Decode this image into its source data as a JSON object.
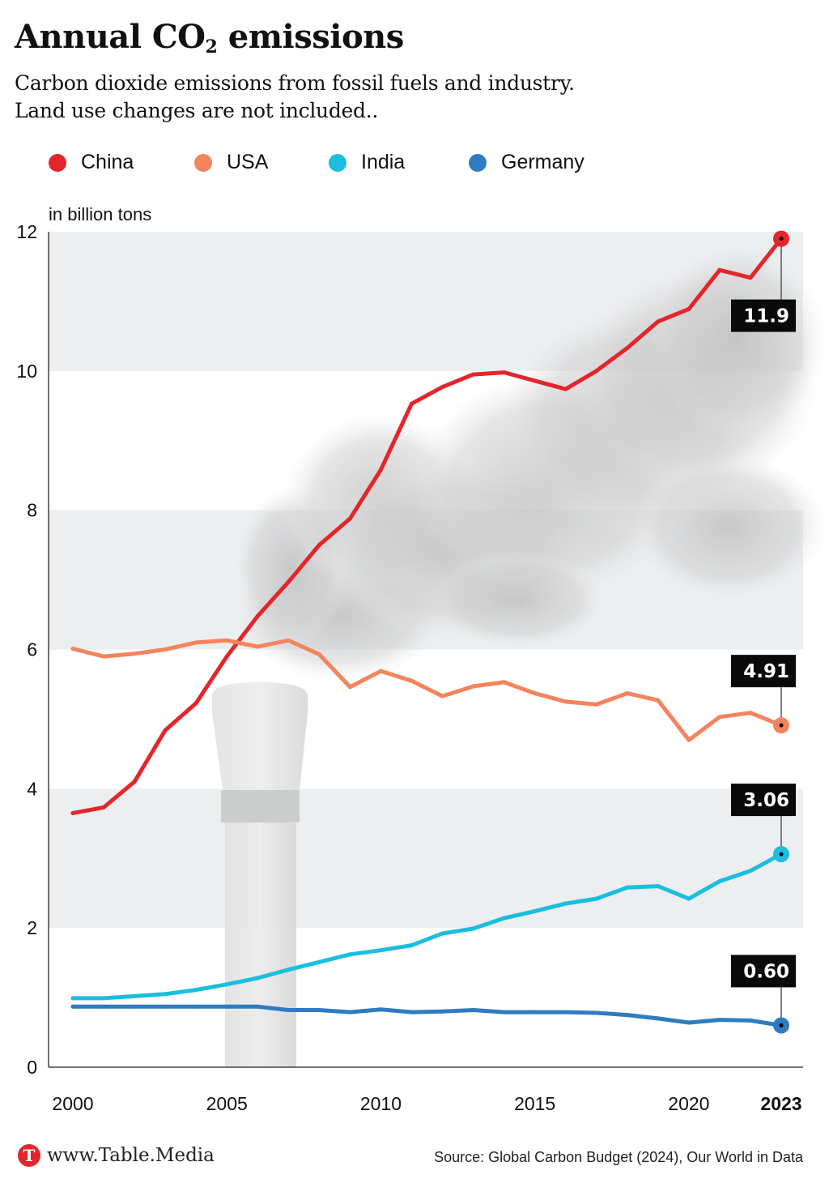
{
  "header": {
    "title_main": "Annual CO",
    "title_sub": "2",
    "title_end": " emissions",
    "subtitle_line1": "Carbon dioxide emissions from fossil fuels and industry.",
    "subtitle_line2": "Land use changes are not included.."
  },
  "footer": {
    "logo_letter": "T",
    "site": "www.Table.Media",
    "source": "Source: Global Carbon Budget (2024), Our World in Data"
  },
  "chart_data": {
    "type": "line",
    "title": "Annual CO2 emissions",
    "subtitle": "Carbon dioxide emissions from fossil fuels and industry. Land use changes are not included..",
    "ylabel": "in billion tons",
    "xlabel": "",
    "ylim": [
      0,
      12
    ],
    "xlim": [
      2000,
      2023
    ],
    "yticks": [
      0,
      2,
      4,
      6,
      8,
      10,
      12
    ],
    "xticks": [
      2000,
      2005,
      2010,
      2015,
      2020,
      2023
    ],
    "xtick_labels": [
      "2000",
      "2005",
      "2010",
      "2015",
      "2020",
      "2023"
    ],
    "shaded_bands": [
      [
        2,
        4
      ],
      [
        6,
        8
      ],
      [
        10,
        12
      ]
    ],
    "legend_position": "top",
    "x": [
      2000,
      2001,
      2002,
      2003,
      2004,
      2005,
      2006,
      2007,
      2008,
      2009,
      2010,
      2011,
      2012,
      2013,
      2014,
      2015,
      2016,
      2017,
      2018,
      2019,
      2020,
      2021,
      2022,
      2023
    ],
    "series": [
      {
        "name": "China",
        "color": "#e3262b",
        "values": [
          3.65,
          3.73,
          4.1,
          4.84,
          5.23,
          5.9,
          6.48,
          6.97,
          7.5,
          7.88,
          8.58,
          9.53,
          9.77,
          9.95,
          9.98,
          9.86,
          9.74,
          10.0,
          10.33,
          10.71,
          10.89,
          11.45,
          11.34,
          11.9
        ],
        "end_label": "11.9"
      },
      {
        "name": "USA",
        "color": "#f3845e",
        "values": [
          6.01,
          5.9,
          5.94,
          6.0,
          6.1,
          6.13,
          6.04,
          6.13,
          5.93,
          5.46,
          5.69,
          5.55,
          5.33,
          5.47,
          5.53,
          5.37,
          5.25,
          5.21,
          5.37,
          5.27,
          4.7,
          5.03,
          5.09,
          4.91
        ],
        "end_label": "4.91"
      },
      {
        "name": "India",
        "color": "#1bbede",
        "values": [
          0.99,
          0.99,
          1.02,
          1.05,
          1.11,
          1.19,
          1.28,
          1.4,
          1.51,
          1.62,
          1.68,
          1.75,
          1.92,
          1.99,
          2.14,
          2.24,
          2.35,
          2.42,
          2.58,
          2.6,
          2.42,
          2.67,
          2.82,
          3.06
        ],
        "end_label": "3.06"
      },
      {
        "name": "Germany",
        "color": "#2d7cc1",
        "values": [
          0.87,
          0.87,
          0.87,
          0.87,
          0.87,
          0.87,
          0.87,
          0.82,
          0.82,
          0.79,
          0.83,
          0.79,
          0.8,
          0.82,
          0.79,
          0.79,
          0.79,
          0.78,
          0.75,
          0.7,
          0.64,
          0.68,
          0.67,
          0.6
        ],
        "end_label": "0.60"
      }
    ]
  }
}
